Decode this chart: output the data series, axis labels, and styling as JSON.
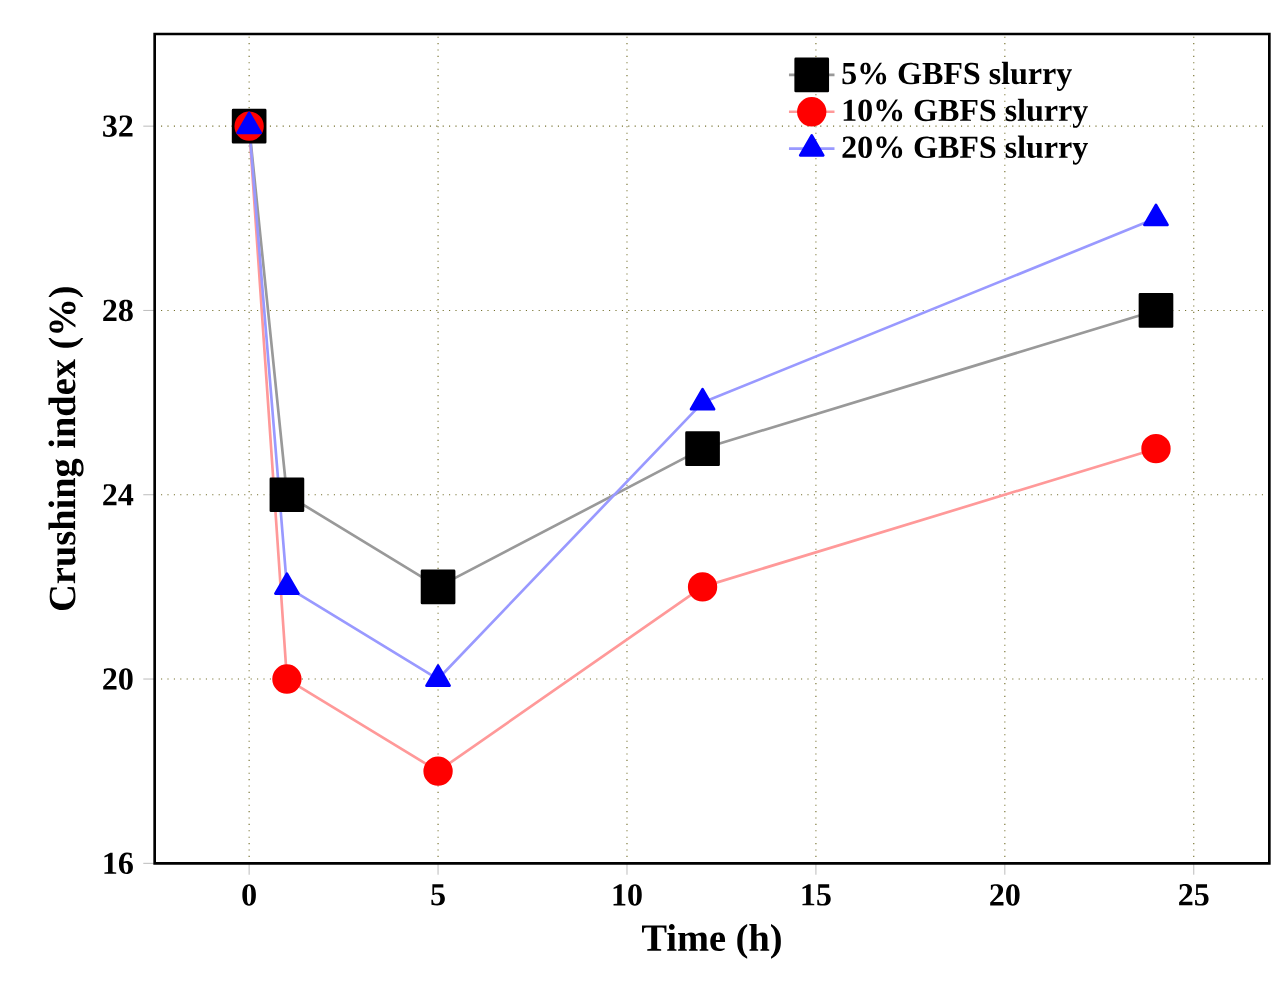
{
  "chart_data": {
    "type": "line",
    "xlabel": "Time (h)",
    "ylabel": "Crushing index (%)",
    "x": [
      0,
      1,
      5,
      12,
      24
    ],
    "series": [
      {
        "name": "5%   GBFS slurry",
        "color": "#000000",
        "marker": "square",
        "values": [
          32,
          24,
          22,
          25,
          28
        ]
      },
      {
        "name": "10% GBFS slurry",
        "color": "#ff0000",
        "marker": "circle",
        "values": [
          32,
          20,
          18,
          22,
          25
        ]
      },
      {
        "name": "20% GBFS slurry",
        "color": "#0000ff",
        "marker": "triangle",
        "values": [
          32,
          22,
          20,
          26,
          30
        ]
      }
    ],
    "xlim": [
      -2.5,
      27
    ],
    "ylim": [
      16,
      34
    ],
    "xticks": [
      0,
      5,
      10,
      15,
      20,
      25
    ],
    "yticks": [
      16,
      20,
      24,
      28,
      32
    ],
    "grid": true,
    "legend": "top right",
    "line_style": "solid"
  }
}
